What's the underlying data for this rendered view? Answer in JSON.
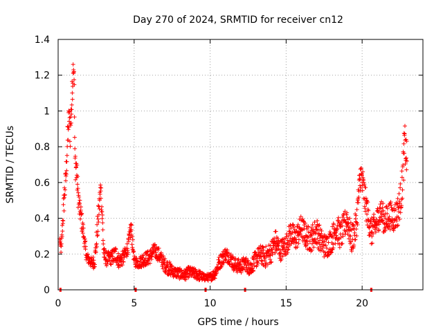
{
  "chart_data": {
    "type": "scatter",
    "title": "Day 270 of 2024, SRMTID for receiver cn12",
    "xlabel": "GPS time / hours",
    "ylabel": "SRMTID / TECUs",
    "xlim": [
      0,
      24
    ],
    "ylim": [
      0,
      1.4
    ],
    "xticks": [
      0,
      5,
      10,
      15,
      20
    ],
    "xtick_labels": [
      "0",
      "5",
      "10",
      "15",
      "20"
    ],
    "yticks": [
      0,
      0.2,
      0.4,
      0.6,
      0.8,
      1.0,
      1.2,
      1.4
    ],
    "ytick_labels": [
      "0",
      "0.2",
      "0.4",
      "0.6",
      "0.8",
      "1",
      "1.2",
      "1.4"
    ],
    "grid": true,
    "marker": "+",
    "color": "#ff0000",
    "series": [
      {
        "name": "SRMTID",
        "x": [
          0.1,
          0.2,
          0.3,
          0.4,
          0.5,
          0.6,
          0.7,
          0.8,
          0.9,
          1.0,
          1.05,
          1.1,
          1.2,
          1.3,
          1.4,
          1.5,
          1.6,
          1.7,
          1.8,
          1.9,
          2.0,
          2.2,
          2.4,
          2.6,
          2.8,
          2.9,
          3.0,
          3.2,
          3.5,
          3.8,
          4.0,
          4.3,
          4.6,
          4.8,
          5.0,
          5.3,
          5.6,
          6.0,
          6.3,
          6.6,
          7.0,
          7.3,
          7.6,
          8.0,
          8.3,
          8.6,
          9.0,
          9.3,
          9.6,
          10.0,
          10.3,
          10.6,
          11.0,
          11.3,
          11.6,
          12.0,
          12.3,
          12.6,
          13.0,
          13.3,
          13.6,
          14.0,
          14.3,
          14.6,
          15.0,
          15.3,
          15.6,
          16.0,
          16.3,
          16.6,
          17.0,
          17.3,
          17.6,
          18.0,
          18.3,
          18.6,
          19.0,
          19.3,
          19.6,
          19.9,
          20.1,
          20.3,
          20.6,
          20.9,
          21.2,
          21.5,
          21.8,
          22.1,
          22.4,
          22.6,
          22.8,
          22.95
        ],
        "y": [
          0.28,
          0.22,
          0.38,
          0.52,
          0.62,
          0.8,
          0.95,
          0.9,
          1.05,
          1.27,
          1.22,
          0.72,
          0.68,
          0.55,
          0.45,
          0.42,
          0.35,
          0.3,
          0.22,
          0.18,
          0.17,
          0.15,
          0.16,
          0.35,
          0.58,
          0.42,
          0.2,
          0.17,
          0.18,
          0.2,
          0.16,
          0.18,
          0.24,
          0.35,
          0.16,
          0.15,
          0.17,
          0.18,
          0.22,
          0.2,
          0.14,
          0.12,
          0.1,
          0.09,
          0.08,
          0.1,
          0.09,
          0.08,
          0.07,
          0.07,
          0.09,
          0.15,
          0.2,
          0.18,
          0.14,
          0.13,
          0.15,
          0.12,
          0.17,
          0.2,
          0.18,
          0.21,
          0.27,
          0.22,
          0.25,
          0.32,
          0.28,
          0.35,
          0.3,
          0.28,
          0.33,
          0.27,
          0.24,
          0.28,
          0.35,
          0.3,
          0.4,
          0.28,
          0.35,
          0.65,
          0.55,
          0.45,
          0.32,
          0.36,
          0.44,
          0.38,
          0.42,
          0.4,
          0.45,
          0.55,
          0.82,
          0.72
        ]
      }
    ],
    "spread": [
      0.02,
      0.03,
      0.05,
      0.08,
      0.06,
      0.1,
      0.08,
      0.12,
      0.1,
      0.06,
      0.08,
      0.1,
      0.08,
      0.08,
      0.06,
      0.06,
      0.05,
      0.05,
      0.04,
      0.03,
      0.03,
      0.03,
      0.04,
      0.08,
      0.06,
      0.08,
      0.04,
      0.04,
      0.04,
      0.05,
      0.04,
      0.04,
      0.04,
      0.05,
      0.03,
      0.03,
      0.04,
      0.04,
      0.04,
      0.04,
      0.04,
      0.04,
      0.03,
      0.03,
      0.03,
      0.03,
      0.03,
      0.03,
      0.02,
      0.02,
      0.03,
      0.04,
      0.04,
      0.04,
      0.04,
      0.04,
      0.04,
      0.04,
      0.05,
      0.05,
      0.06,
      0.06,
      0.07,
      0.06,
      0.06,
      0.07,
      0.07,
      0.07,
      0.07,
      0.07,
      0.08,
      0.07,
      0.07,
      0.07,
      0.08,
      0.08,
      0.08,
      0.08,
      0.09,
      0.1,
      0.1,
      0.08,
      0.08,
      0.08,
      0.08,
      0.08,
      0.08,
      0.08,
      0.09,
      0.1,
      0.12,
      0.1
    ],
    "zero_points_x": [
      0.15,
      5.1,
      9.7,
      12.3,
      20.6
    ]
  }
}
